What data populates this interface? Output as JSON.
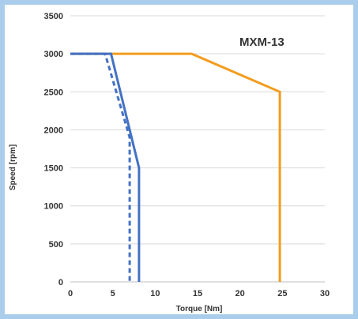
{
  "chart_data": {
    "type": "line",
    "title": "",
    "annotation": "MXM-13",
    "xlabel": "Torque [Nm]",
    "ylabel": "Speed [rpm]",
    "xlim": [
      0,
      30
    ],
    "ylim": [
      0,
      3500
    ],
    "x_ticks": [
      0,
      5,
      10,
      15,
      20,
      25,
      30
    ],
    "y_ticks": [
      0,
      500,
      1000,
      1500,
      2000,
      2500,
      3000,
      3500
    ],
    "grid": "horizontal",
    "legend": "none",
    "series": [
      {
        "color": "#f39c1f",
        "style": "solid",
        "points": [
          [
            0,
            3000
          ],
          [
            14.3,
            3000
          ],
          [
            24.7,
            2500
          ],
          [
            24.7,
            0
          ]
        ]
      },
      {
        "color": "#4472c4",
        "style": "solid",
        "points": [
          [
            0,
            3000
          ],
          [
            4.8,
            3000
          ],
          [
            8.1,
            1500
          ],
          [
            8.1,
            0
          ]
        ]
      },
      {
        "color": "#4472c4",
        "style": "dashed",
        "points": [
          [
            0,
            3000
          ],
          [
            4.1,
            3000
          ],
          [
            7.0,
            1900
          ],
          [
            7.0,
            0
          ]
        ]
      }
    ]
  }
}
